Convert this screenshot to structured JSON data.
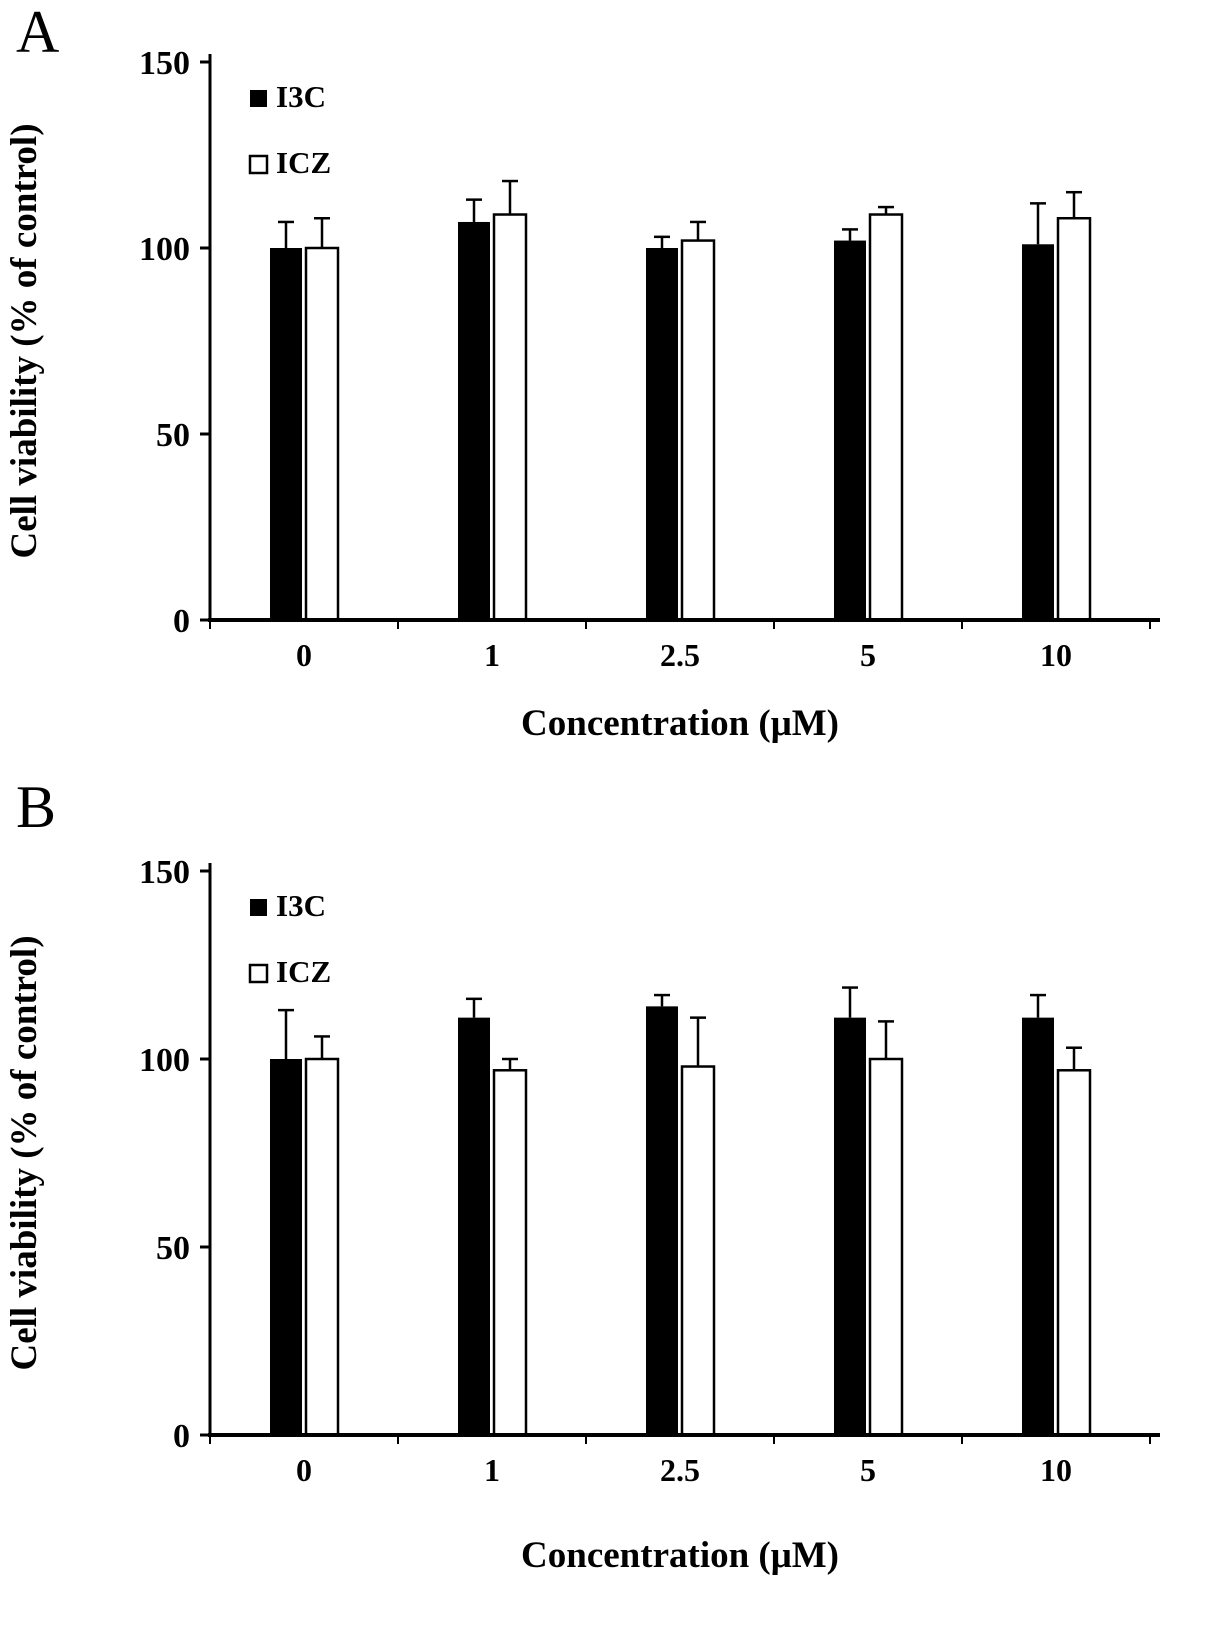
{
  "figure": {
    "background": "#ffffff",
    "bar_black": "#000000",
    "bar_white": "#ffffff",
    "axis_color": "#000000"
  },
  "chart_data": [
    {
      "type": "bar",
      "panel_label": "A",
      "title": "",
      "xlabel": "Concentration (μM)",
      "ylabel": "Cell viability (% of control)",
      "categories": [
        "0",
        "1",
        "2.5",
        "5",
        "10"
      ],
      "ylim": [
        0,
        150
      ],
      "yticks": [
        150,
        100,
        50,
        0
      ],
      "grid": false,
      "legend_position": "top-left-inside",
      "error_bars": "upper",
      "series": [
        {
          "name": "I3C",
          "color": "#000000",
          "values": [
            100,
            107,
            100,
            102,
            101
          ],
          "errors": [
            7,
            6,
            3,
            3,
            11
          ]
        },
        {
          "name": "ICZ",
          "color": "#ffffff",
          "values": [
            100,
            109,
            102,
            109,
            108
          ],
          "errors": [
            8,
            9,
            5,
            2,
            7
          ]
        }
      ]
    },
    {
      "type": "bar",
      "panel_label": "B",
      "title": "",
      "xlabel": "Concentration (μM)",
      "ylabel": "Cell viability (% of control)",
      "categories": [
        "0",
        "1",
        "2.5",
        "5",
        "10"
      ],
      "ylim": [
        0,
        150
      ],
      "yticks": [
        150,
        100,
        50,
        0
      ],
      "grid": false,
      "legend_position": "top-left-inside",
      "error_bars": "upper",
      "series": [
        {
          "name": "I3C",
          "color": "#000000",
          "values": [
            100,
            111,
            114,
            111,
            111
          ],
          "errors": [
            13,
            5,
            3,
            8,
            6
          ]
        },
        {
          "name": "ICZ",
          "color": "#ffffff",
          "values": [
            100,
            97,
            98,
            100,
            97
          ],
          "errors": [
            6,
            3,
            13,
            10,
            6
          ]
        }
      ]
    }
  ]
}
